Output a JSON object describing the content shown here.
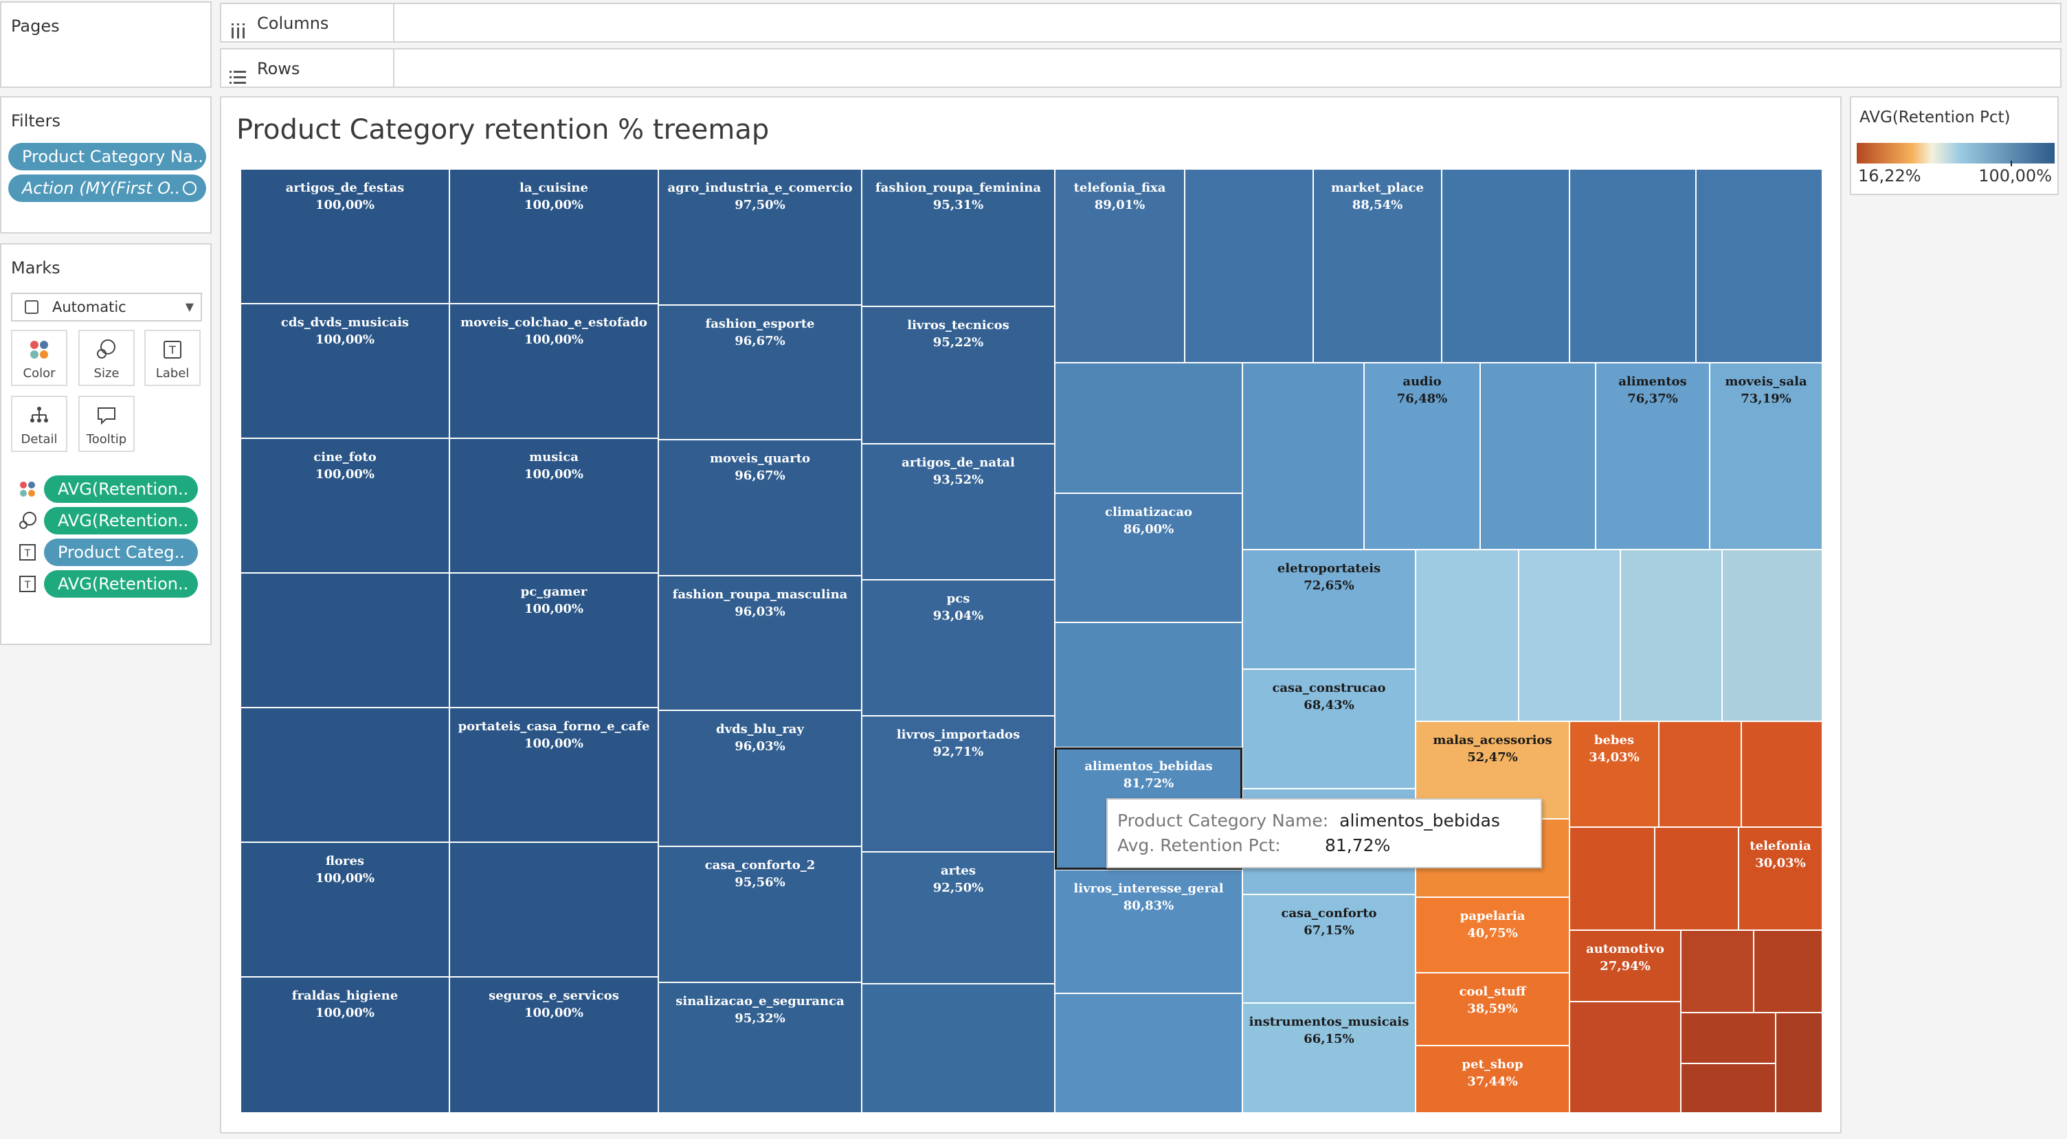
{
  "shelves": {
    "pages_label": "Pages",
    "columns_label": "Columns",
    "rows_label": "Rows",
    "filters_label": "Filters",
    "filter_pills": [
      "Product Category Na..",
      "Action (MY(First O.."
    ]
  },
  "marks": {
    "label": "Marks",
    "mark_type": "Automatic",
    "buttons": [
      "Color",
      "Size",
      "Label",
      "Detail",
      "Tooltip"
    ],
    "pills": [
      "AVG(Retention..",
      "AVG(Retention..",
      "Product Categ..",
      "AVG(Retention.."
    ]
  },
  "view": {
    "title": "Product Category retention % treemap"
  },
  "legend": {
    "title": "AVG(Retention Pct)",
    "min_label": "16,22%",
    "max_label": "100,00%"
  },
  "tooltip": {
    "name_key": "Product Category Name:",
    "name_value": "alimentos_bebidas",
    "pct_key": "Avg. Retention Pct:",
    "pct_value": "81,72%"
  },
  "chart_data": {
    "type": "treemap",
    "title": "Product Category retention % treemap",
    "measure": "AVG(Retention Pct)",
    "color_range": [
      "16,22%",
      "100,00%"
    ],
    "labeled": [
      {
        "name": "artigos_de_festas",
        "value": "100,00%"
      },
      {
        "name": "la_cuisine",
        "value": "100,00%"
      },
      {
        "name": "agro_industria_e_comercio",
        "value": "97,50%"
      },
      {
        "name": "fashion_roupa_feminina",
        "value": "95,31%"
      },
      {
        "name": "telefonia_fixa",
        "value": "89,01%"
      },
      {
        "name": "market_place",
        "value": "88,54%"
      },
      {
        "name": "cds_dvds_musicais",
        "value": "100,00%"
      },
      {
        "name": "moveis_colchao_e_estofado",
        "value": "100,00%"
      },
      {
        "name": "fashion_esporte",
        "value": "96,67%"
      },
      {
        "name": "livros_tecnicos",
        "value": "95,22%"
      },
      {
        "name": "audio",
        "value": "76,48%"
      },
      {
        "name": "alimentos",
        "value": "76,37%"
      },
      {
        "name": "moveis_sala",
        "value": "73,19%"
      },
      {
        "name": "cine_foto",
        "value": "100,00%"
      },
      {
        "name": "musica",
        "value": "100,00%"
      },
      {
        "name": "moveis_quarto",
        "value": "96,67%"
      },
      {
        "name": "artigos_de_natal",
        "value": "93,52%"
      },
      {
        "name": "climatizacao",
        "value": "86,00%"
      },
      {
        "name": "eletroportateis",
        "value": "72,65%"
      },
      {
        "name": "pc_gamer",
        "value": "100,00%"
      },
      {
        "name": "fashion_roupa_masculina",
        "value": "96,03%"
      },
      {
        "name": "pcs",
        "value": "93,04%"
      },
      {
        "name": "casa_construcao",
        "value": "68,43%"
      },
      {
        "name": "portateis_casa_forno_e_cafe",
        "value": "100,00%"
      },
      {
        "name": "dvds_blu_ray",
        "value": "96,03%"
      },
      {
        "name": "livros_importados",
        "value": "92,71%"
      },
      {
        "name": "alimentos_bebidas",
        "value": "81,72%"
      },
      {
        "name": "malas_acessorios",
        "value": "52,47%"
      },
      {
        "name": "bebes",
        "value": "34,03%"
      },
      {
        "name": "flores",
        "value": "100,00%"
      },
      {
        "name": "casa_conforto_2",
        "value": "95,56%"
      },
      {
        "name": "artes",
        "value": "92,50%"
      },
      {
        "name": "telefonia",
        "value": "30,03%"
      },
      {
        "name": "livros_interesse_geral",
        "value": "80,83%"
      },
      {
        "name": "casa_conforto",
        "value": "67,15%"
      },
      {
        "name": "papelaria",
        "value": "40,75%"
      },
      {
        "name": "automotivo",
        "value": "27,94%"
      },
      {
        "name": "fraldas_higiene",
        "value": "100,00%"
      },
      {
        "name": "seguros_e_servicos",
        "value": "100,00%"
      },
      {
        "name": "sinalizacao_e_seguranca",
        "value": "95,32%"
      },
      {
        "name": "cool_stuff",
        "value": "38,59%"
      },
      {
        "name": "instrumentos_musicais",
        "value": "66,15%"
      },
      {
        "name": "pet_shop",
        "value": "37,44%"
      }
    ]
  }
}
